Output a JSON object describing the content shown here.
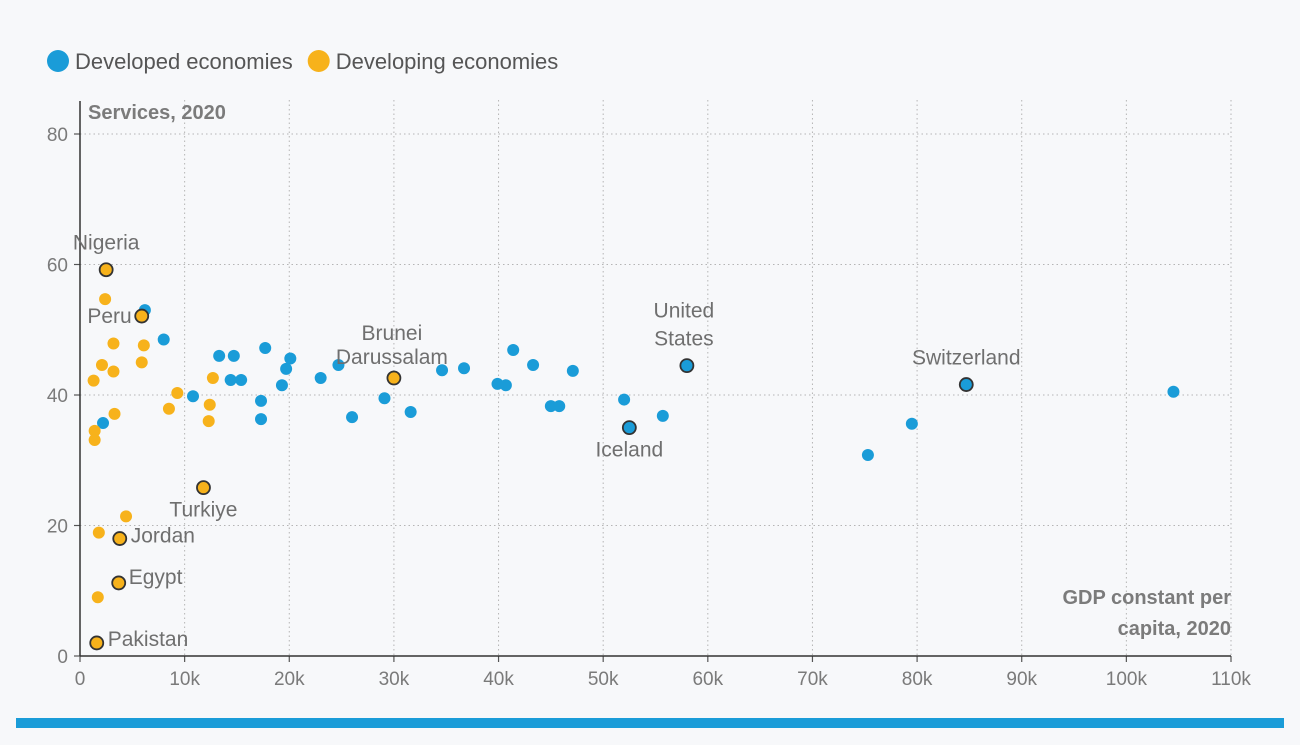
{
  "chart_data": {
    "type": "scatter",
    "title": "",
    "ylabel": "Services, 2020",
    "xlabel_lines": [
      "GDP constant per",
      "capita, 2020"
    ],
    "xlim": [
      0,
      110000
    ],
    "ylim": [
      0,
      80
    ],
    "x_ticks": [
      0,
      10000,
      20000,
      30000,
      40000,
      50000,
      60000,
      70000,
      80000,
      90000,
      100000,
      110000
    ],
    "x_tick_labels": [
      "0",
      "10k",
      "20k",
      "30k",
      "40k",
      "50k",
      "60k",
      "70k",
      "80k",
      "90k",
      "100k",
      "110k"
    ],
    "y_ticks": [
      0,
      20,
      40,
      60,
      80
    ],
    "y_tick_labels": [
      "0",
      "20",
      "40",
      "60",
      "80"
    ],
    "grid": true,
    "legend_position": "top-left",
    "colors": {
      "developed": "#1a9cd8",
      "developing": "#f7b21b",
      "bottom_bar": "#1a9cd8",
      "highlight_stroke": "#333333"
    },
    "series": [
      {
        "name": "Developed economies",
        "key": "developed",
        "points": [
          {
            "x": 2200,
            "y": 35.7
          },
          {
            "x": 6200,
            "y": 53
          },
          {
            "x": 8000,
            "y": 48.5
          },
          {
            "x": 10800,
            "y": 39.8
          },
          {
            "x": 13300,
            "y": 46
          },
          {
            "x": 14400,
            "y": 42.3
          },
          {
            "x": 14700,
            "y": 46
          },
          {
            "x": 15400,
            "y": 42.3
          },
          {
            "x": 17300,
            "y": 39.1
          },
          {
            "x": 17300,
            "y": 36.3
          },
          {
            "x": 17700,
            "y": 47.2
          },
          {
            "x": 19300,
            "y": 41.5
          },
          {
            "x": 19700,
            "y": 44
          },
          {
            "x": 20100,
            "y": 45.6
          },
          {
            "x": 23000,
            "y": 42.6
          },
          {
            "x": 24700,
            "y": 44.6
          },
          {
            "x": 26000,
            "y": 36.6
          },
          {
            "x": 29100,
            "y": 39.5
          },
          {
            "x": 31600,
            "y": 37.4
          },
          {
            "x": 34600,
            "y": 43.8
          },
          {
            "x": 36700,
            "y": 44.1
          },
          {
            "x": 39900,
            "y": 41.7
          },
          {
            "x": 40700,
            "y": 41.5
          },
          {
            "x": 41400,
            "y": 46.9
          },
          {
            "x": 43300,
            "y": 44.6
          },
          {
            "x": 45000,
            "y": 38.3
          },
          {
            "x": 45800,
            "y": 38.3
          },
          {
            "x": 47100,
            "y": 43.7
          },
          {
            "x": 52000,
            "y": 39.3
          },
          {
            "x": 55700,
            "y": 36.8
          },
          {
            "x": 75300,
            "y": 30.8
          },
          {
            "x": 79500,
            "y": 35.6
          },
          {
            "x": 104500,
            "y": 40.5
          },
          {
            "x": 52500,
            "y": 35,
            "label": "Iceland",
            "highlight": true
          },
          {
            "x": 58000,
            "y": 44.5,
            "label_lines": [
              "United",
              "States"
            ],
            "highlight": true
          },
          {
            "x": 84700,
            "y": 41.6,
            "label": "Switzerland",
            "highlight": true
          }
        ]
      },
      {
        "name": "Developing economies",
        "key": "developing",
        "points": [
          {
            "x": 1300,
            "y": 42.2
          },
          {
            "x": 1400,
            "y": 34.5
          },
          {
            "x": 1400,
            "y": 33.1
          },
          {
            "x": 1700,
            "y": 9
          },
          {
            "x": 1800,
            "y": 18.9
          },
          {
            "x": 2100,
            "y": 44.6
          },
          {
            "x": 2400,
            "y": 54.7
          },
          {
            "x": 3200,
            "y": 47.9
          },
          {
            "x": 3200,
            "y": 43.6
          },
          {
            "x": 3300,
            "y": 37.1
          },
          {
            "x": 4400,
            "y": 21.4
          },
          {
            "x": 5900,
            "y": 45
          },
          {
            "x": 6100,
            "y": 47.6
          },
          {
            "x": 8500,
            "y": 37.9
          },
          {
            "x": 9300,
            "y": 40.3
          },
          {
            "x": 12300,
            "y": 36
          },
          {
            "x": 12400,
            "y": 38.5
          },
          {
            "x": 12700,
            "y": 42.6
          },
          {
            "x": 2500,
            "y": 59.2,
            "label": "Nigeria",
            "highlight": true
          },
          {
            "x": 5900,
            "y": 52.1,
            "label": "Peru",
            "highlight": true
          },
          {
            "x": 30000,
            "y": 42.6,
            "label_lines": [
              "Brunei",
              "Darussalam"
            ],
            "highlight": true
          },
          {
            "x": 11800,
            "y": 25.8,
            "label": "Turkiye",
            "highlight": true
          },
          {
            "x": 3800,
            "y": 18,
            "label": "Jordan",
            "highlight": true
          },
          {
            "x": 3700,
            "y": 11.2,
            "label": "Egypt",
            "highlight": true
          },
          {
            "x": 1600,
            "y": 2,
            "label": "Pakistan",
            "highlight": true
          }
        ]
      }
    ]
  }
}
